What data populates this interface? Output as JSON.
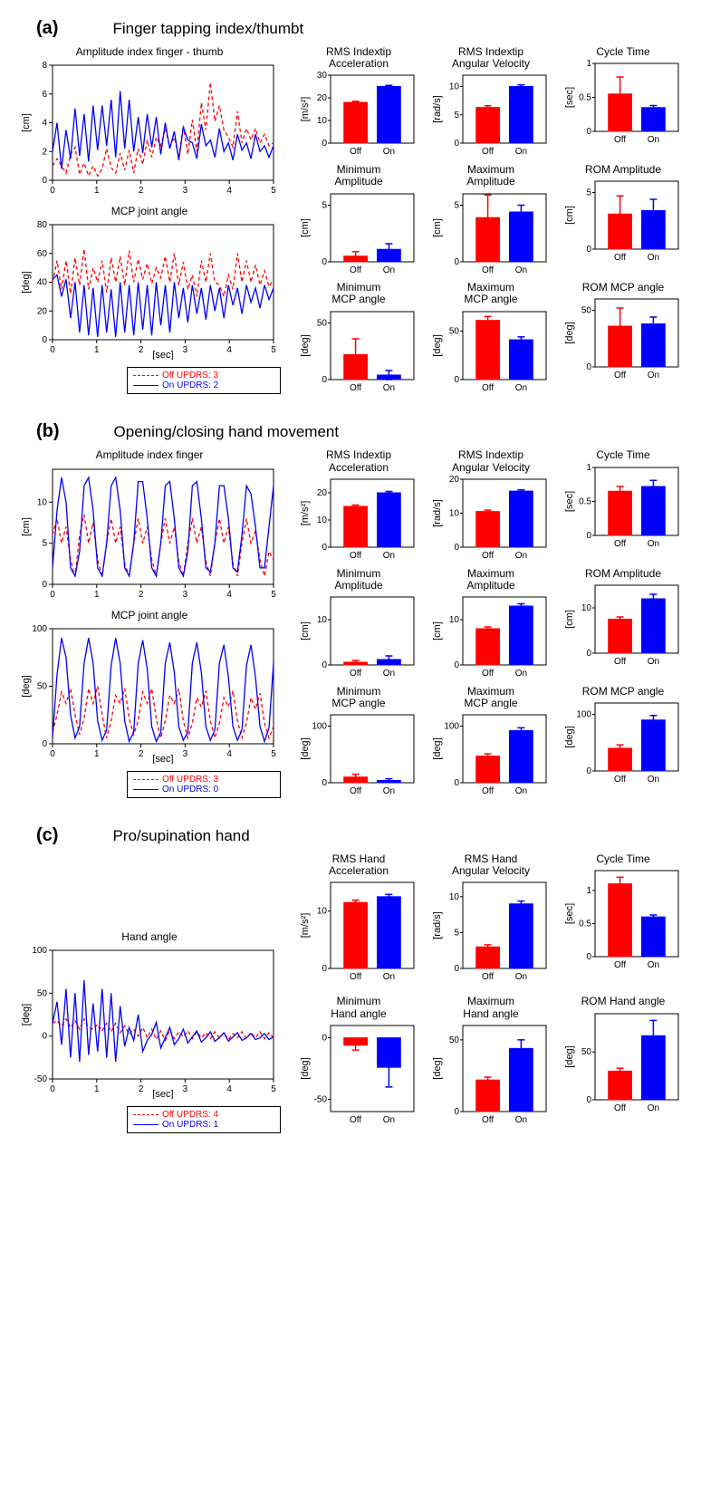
{
  "colors": {
    "off": "#ff0000",
    "on": "#0000ff",
    "axis": "#000000",
    "plot_border": "#000000",
    "bg": "#ffffff"
  },
  "sections": {
    "a": {
      "label": "(a)",
      "title": "Finger tapping index/thumbt",
      "legend_off": "Off UPDRS: 3",
      "legend_on": "On UPDRS: 2",
      "linecharts": [
        {
          "title": "Amplitude index finger  - thumb",
          "ylabel": "[cm]",
          "xlabel": "",
          "xlim": [
            0,
            5
          ],
          "ylim": [
            0,
            8
          ],
          "ytick_step": 2,
          "xtick_step": 1,
          "off": [
            1.0,
            1.5,
            1.0,
            0.5,
            1.8,
            2.3,
            0.4,
            1.2,
            0.3,
            1.0,
            0.3,
            0.8,
            2.2,
            0.9,
            0.5,
            1.9,
            0.7,
            2.1,
            0.5,
            2.2,
            1.1,
            2.8,
            1.6,
            3.0,
            2.4,
            3.6,
            2.3,
            3.0,
            1.6,
            3.8,
            1.8,
            4.2,
            2.0,
            5.4,
            3.5,
            6.8,
            4.1,
            5.2,
            3.5,
            3.0,
            2.3,
            4.8,
            2.6,
            3.6,
            2.8,
            3.6,
            2.6,
            3.2,
            2.4,
            2.6
          ],
          "on": [
            2.0,
            4.0,
            0.8,
            3.5,
            1.5,
            5.0,
            1.7,
            4.6,
            1.3,
            5.2,
            2.1,
            5.2,
            2.4,
            5.6,
            1.6,
            6.2,
            2.2,
            5.6,
            2.0,
            4.4,
            1.9,
            4.6,
            2.3,
            4.4,
            1.8,
            4.0,
            2.2,
            3.4,
            1.4,
            3.7,
            2.8,
            2.6,
            1.5,
            3.9,
            2.4,
            2.8,
            1.6,
            3.6,
            2.0,
            2.6,
            1.4,
            3.2,
            2.1,
            2.6,
            1.5,
            3.2,
            2.0,
            2.4,
            1.6,
            2.4
          ]
        },
        {
          "title": "MCP joint angle",
          "ylabel": "[deg]",
          "xlabel": "[sec]",
          "xlim": [
            0,
            5
          ],
          "ylim": [
            0,
            80
          ],
          "ytick_step": 20,
          "xtick_step": 1,
          "off": [
            40,
            55,
            35,
            55,
            32,
            57,
            38,
            63,
            35,
            50,
            40,
            55,
            33,
            57,
            40,
            58,
            38,
            62,
            40,
            56,
            42,
            53,
            39,
            50,
            43,
            58,
            40,
            60,
            38,
            54,
            35,
            45,
            30,
            55,
            40,
            60,
            40,
            38,
            30,
            45,
            35,
            60,
            40,
            55,
            40,
            52,
            38,
            48,
            37,
            42
          ],
          "on": [
            42,
            45,
            30,
            42,
            15,
            40,
            5,
            38,
            3,
            36,
            2,
            38,
            5,
            35,
            2,
            40,
            5,
            38,
            3,
            40,
            7,
            38,
            3,
            40,
            10,
            38,
            5,
            40,
            15,
            36,
            12,
            38,
            18,
            36,
            14,
            38,
            20,
            36,
            15,
            38,
            24,
            36,
            18,
            38,
            26,
            36,
            22,
            38,
            28,
            36
          ]
        }
      ],
      "bars": [
        {
          "title": "RMS Indextip\nAcceleration",
          "ylabel": "[m/s²]",
          "ylim": [
            0,
            30
          ],
          "ytick_step": 10,
          "off": 18,
          "on": 25,
          "off_err": 0.5,
          "on_err": 0.5
        },
        {
          "title": "RMS Indextip\nAngular Velocity",
          "ylabel": "[rad/s]",
          "ylim": [
            0,
            12
          ],
          "ytick_step": 5,
          "off": 6.3,
          "on": 10,
          "off_err": 0.3,
          "on_err": 0.3
        },
        {
          "title": "Cycle Time",
          "ylabel": "[sec]",
          "ylim": [
            0,
            1
          ],
          "ytick_step": 0.5,
          "off": 0.55,
          "on": 0.35,
          "off_err": 0.25,
          "on_err": 0.03
        },
        {
          "title": "Minimum\nAmplitude",
          "ylabel": "[cm]",
          "ylim": [
            0,
            6
          ],
          "ytick_step": 5,
          "off": 0.5,
          "on": 1.1,
          "off_err": 0.4,
          "on_err": 0.5
        },
        {
          "title": "Maximum\nAmplitude",
          "ylabel": "[cm]",
          "ylim": [
            0,
            6
          ],
          "ytick_step": 5,
          "off": 3.9,
          "on": 4.4,
          "off_err": 2.0,
          "on_err": 0.6
        },
        {
          "title": "ROM Amplitude",
          "ylabel": "[cm]",
          "ylim": [
            0,
            6
          ],
          "ytick_step": 5,
          "off": 3.1,
          "on": 3.4,
          "off_err": 1.6,
          "on_err": 1.0
        },
        {
          "title": "Minimum\nMCP angle",
          "ylabel": "[deg]",
          "ylim": [
            0,
            60
          ],
          "ytick_step": 50,
          "off": 22,
          "on": 4,
          "off_err": 14,
          "on_err": 4
        },
        {
          "title": "Maximum\nMCP angle",
          "ylabel": "[deg]",
          "ylim": [
            0,
            70
          ],
          "ytick_step": 50,
          "off": 61,
          "on": 41,
          "off_err": 4,
          "on_err": 3
        },
        {
          "title": "ROM MCP angle",
          "ylabel": "[deg]",
          "ylim": [
            0,
            60
          ],
          "ytick_step": 50,
          "off": 36,
          "on": 38,
          "off_err": 16,
          "on_err": 6
        }
      ]
    },
    "b": {
      "label": "(b)",
      "title": "Opening/closing hand movement",
      "legend_off": "Off UPDRS: 3",
      "legend_on": "On UPDRS: 0",
      "linecharts": [
        {
          "title": "Amplitude index finger",
          "ylabel": "[cm]",
          "xlabel": "",
          "xlim": [
            0,
            5
          ],
          "ylim": [
            0,
            14
          ],
          "ytick_step": 5,
          "xtick_step": 1,
          "off": [
            6,
            8,
            5,
            7,
            3,
            1,
            6,
            8.5,
            5,
            7.5,
            3,
            1,
            5,
            8,
            5,
            7,
            2.5,
            1,
            5,
            8,
            5,
            7,
            3,
            1,
            5,
            8,
            5,
            7,
            2.8,
            1,
            5,
            8,
            5,
            7,
            2.8,
            1,
            5,
            8,
            5,
            7,
            2.5,
            1,
            5,
            8,
            5,
            6.5,
            3,
            1,
            4,
            3
          ],
          "on": [
            2,
            9,
            13,
            10,
            2,
            1,
            4,
            12,
            13,
            9,
            2,
            1,
            5,
            12,
            13,
            9,
            2,
            1,
            5,
            12.5,
            12.5,
            8,
            2,
            1,
            5,
            12,
            12.5,
            8,
            2,
            1,
            4,
            12,
            12.5,
            8,
            2,
            1.5,
            5,
            12,
            12,
            8,
            2,
            1.5,
            6,
            12,
            11,
            7,
            2,
            2,
            7,
            12
          ]
        },
        {
          "title": "MCP joint angle",
          "ylabel": "[deg]",
          "xlabel": "[sec]",
          "xlim": [
            0,
            5
          ],
          "ylim": [
            0,
            100
          ],
          "ytick_step": 50,
          "xtick_step": 1,
          "off": [
            10,
            25,
            45,
            35,
            48,
            25,
            8,
            22,
            48,
            35,
            50,
            25,
            5,
            20,
            42,
            35,
            48,
            22,
            8,
            20,
            45,
            35,
            48,
            22,
            5,
            20,
            42,
            35,
            48,
            20,
            5,
            18,
            40,
            32,
            46,
            20,
            5,
            18,
            40,
            32,
            46,
            20,
            5,
            18,
            40,
            30,
            44,
            18,
            5,
            15
          ],
          "on": [
            5,
            60,
            92,
            75,
            25,
            5,
            15,
            70,
            92,
            70,
            20,
            3,
            12,
            68,
            92,
            70,
            20,
            2,
            10,
            70,
            90,
            65,
            15,
            2,
            10,
            70,
            88,
            62,
            15,
            3,
            10,
            70,
            88,
            62,
            15,
            3,
            12,
            70,
            86,
            58,
            15,
            3,
            12,
            68,
            86,
            58,
            15,
            2,
            14,
            70
          ]
        }
      ],
      "bars": [
        {
          "title": "RMS Indextip\nAcceleration",
          "ylabel": "[m/s²]",
          "ylim": [
            0,
            25
          ],
          "ytick_step": 10,
          "off": 15,
          "on": 20,
          "off_err": 0.5,
          "on_err": 0.5
        },
        {
          "title": "RMS Indextip\nAngular Velocity",
          "ylabel": "[rad/s]",
          "ylim": [
            0,
            20
          ],
          "ytick_step": 10,
          "off": 10.5,
          "on": 16.5,
          "off_err": 0.4,
          "on_err": 0.4
        },
        {
          "title": "Cycle Time",
          "ylabel": "[sec]",
          "ylim": [
            0,
            1
          ],
          "ytick_step": 0.5,
          "off": 0.65,
          "on": 0.72,
          "off_err": 0.07,
          "on_err": 0.09
        },
        {
          "title": "Minimum\nAmplitude",
          "ylabel": "[cm]",
          "ylim": [
            0,
            15
          ],
          "ytick_step": 10,
          "off": 0.6,
          "on": 1.2,
          "off_err": 0.4,
          "on_err": 0.8
        },
        {
          "title": "Maximum\nAmplitude",
          "ylabel": "[cm]",
          "ylim": [
            0,
            15
          ],
          "ytick_step": 10,
          "off": 8,
          "on": 13,
          "off_err": 0.4,
          "on_err": 0.5
        },
        {
          "title": "ROM Amplitude",
          "ylabel": "[cm]",
          "ylim": [
            0,
            15
          ],
          "ytick_step": 10,
          "off": 7.5,
          "on": 12,
          "off_err": 0.5,
          "on_err": 1.0
        },
        {
          "title": "Minimum\nMCP angle",
          "ylabel": "[deg]",
          "ylim": [
            0,
            120
          ],
          "ytick_step": 100,
          "off": 10,
          "on": 4,
          "off_err": 5,
          "on_err": 3
        },
        {
          "title": "Maximum\nMCP angle",
          "ylabel": "[deg]",
          "ylim": [
            0,
            120
          ],
          "ytick_step": 100,
          "off": 47,
          "on": 92,
          "off_err": 4,
          "on_err": 5
        },
        {
          "title": "ROM MCP angle",
          "ylabel": "[deg]",
          "ylim": [
            0,
            120
          ],
          "ytick_step": 100,
          "off": 40,
          "on": 90,
          "off_err": 6,
          "on_err": 8
        }
      ]
    },
    "c": {
      "label": "(c)",
      "title": "Pro/supination hand",
      "legend_off": "Off UPDRS: 4",
      "legend_on": "On UPDRS: 1",
      "linecharts": [
        {
          "title": "Hand angle",
          "ylabel": "[deg]",
          "xlabel": "[sec]",
          "xlim": [
            0,
            5
          ],
          "ylim": [
            -50,
            100
          ],
          "ytick_step": 50,
          "xtick_step": 1,
          "off": [
            15,
            18,
            12,
            20,
            10,
            18,
            8,
            20,
            10,
            8,
            14,
            6,
            15,
            5,
            15,
            4,
            12,
            2,
            8,
            0,
            10,
            -2,
            8,
            -4,
            6,
            -5,
            7,
            -3,
            5,
            -1,
            6,
            -3,
            5,
            -2,
            4,
            -3,
            5,
            -2,
            4,
            -4,
            3,
            -2,
            5,
            -3,
            4,
            -2,
            5,
            -3,
            4,
            -2
          ],
          "on": [
            15,
            40,
            -10,
            55,
            -25,
            50,
            -30,
            65,
            -22,
            38,
            -18,
            55,
            -25,
            50,
            -30,
            35,
            -12,
            10,
            -5,
            25,
            -18,
            -5,
            2,
            16,
            -14,
            -2,
            10,
            -10,
            -3,
            8,
            -8,
            -1,
            6,
            -7,
            -2,
            5,
            -6,
            -2,
            4,
            -6,
            -1,
            4,
            -5,
            -2,
            3,
            -4,
            -2,
            3,
            -4,
            -1
          ]
        }
      ],
      "bars": [
        {
          "title": "RMS Hand\nAcceleration",
          "ylabel": "[m/s²]",
          "ylim": [
            0,
            15
          ],
          "ytick_step": 10,
          "off": 11.5,
          "on": 12.5,
          "off_err": 0.4,
          "on_err": 0.4
        },
        {
          "title": "RMS Hand\nAngular Velocity",
          "ylabel": "[rad/s]",
          "ylim": [
            0,
            12
          ],
          "ytick_step": 5,
          "off": 3,
          "on": 9,
          "off_err": 0.3,
          "on_err": 0.4
        },
        {
          "title": "Cycle Time",
          "ylabel": "[sec]",
          "ylim": [
            0,
            1.3
          ],
          "ytick_step": 0.5,
          "off": 1.1,
          "on": 0.6,
          "off_err": 0.1,
          "on_err": 0.03
        },
        {
          "title": "Minimum\nHand angle",
          "ylabel": "[deg]",
          "ylim": [
            -60,
            10
          ],
          "ytick_step": 50,
          "off": -6,
          "on": -24,
          "off_err": 4,
          "on_err": 16,
          "zero_top": true
        },
        {
          "title": "Maximum\nHand angle",
          "ylabel": "[deg]",
          "ylim": [
            0,
            60
          ],
          "ytick_step": 50,
          "off": 22,
          "on": 44,
          "off_err": 2,
          "on_err": 6
        },
        {
          "title": "ROM Hand angle",
          "ylabel": "[deg]",
          "ylim": [
            0,
            90
          ],
          "ytick_step": 50,
          "off": 30,
          "on": 67,
          "off_err": 3,
          "on_err": 16
        }
      ]
    }
  },
  "xticks_label_off": "Off",
  "xticks_label_on": "On"
}
